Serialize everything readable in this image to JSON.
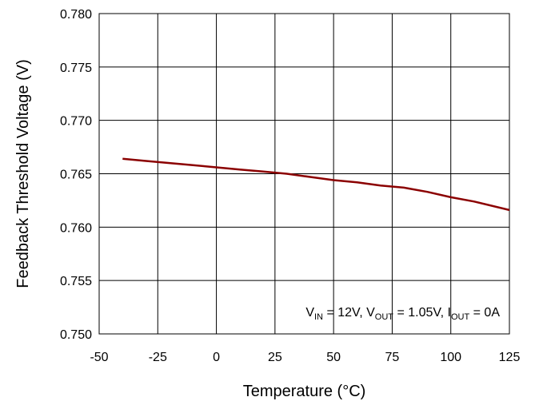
{
  "chart_data": {
    "type": "line",
    "xlabel": "Temperature (°C)",
    "ylabel": "Feedback Threshold Voltage (V)",
    "xlim": [
      -50,
      125
    ],
    "ylim": [
      0.75,
      0.78
    ],
    "x_ticks": [
      -50,
      -25,
      0,
      25,
      50,
      75,
      100,
      125
    ],
    "y_ticks": [
      0.75,
      0.755,
      0.76,
      0.765,
      0.77,
      0.775,
      0.78
    ],
    "x_tick_labels": [
      "-50",
      "-25",
      "0",
      "25",
      "50",
      "75",
      "100",
      "125"
    ],
    "y_tick_labels": [
      "0.750",
      "0.755",
      "0.760",
      "0.765",
      "0.770",
      "0.775",
      "0.780"
    ],
    "grid": true,
    "line_color": "#8b0000",
    "annotation": {
      "v_base": "V",
      "v_sub": "IN",
      "v_val": " = 12V, ",
      "vo_base": "V",
      "vo_sub": "OUT",
      "vo_val": " = 1.05V, ",
      "io_base": "I",
      "io_sub": "OUT",
      "io_val": " = 0A"
    },
    "series": [
      {
        "x": [
          -40,
          -30,
          -20,
          -10,
          -5,
          0,
          10,
          20,
          30,
          40,
          50,
          60,
          70,
          80,
          90,
          100,
          110,
          125
        ],
        "values": [
          0.7664,
          0.7662,
          0.766,
          0.7658,
          0.7657,
          0.7656,
          0.7654,
          0.7652,
          0.765,
          0.7647,
          0.7644,
          0.7642,
          0.7639,
          0.7637,
          0.7633,
          0.7628,
          0.7624,
          0.7616
        ]
      }
    ]
  }
}
